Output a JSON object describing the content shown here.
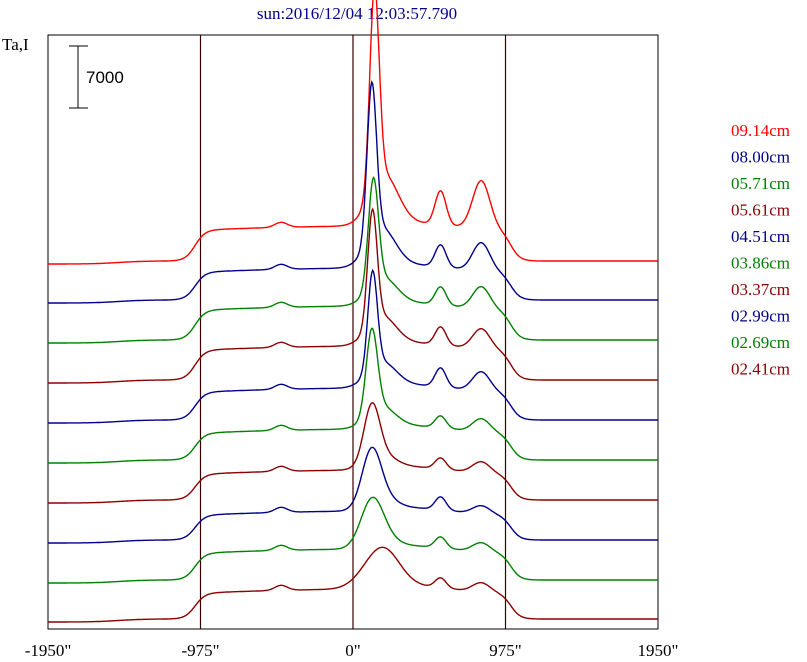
{
  "chart_data": {
    "type": "line",
    "title": "sun:2016/12/04 12:03:57.790",
    "ylabel": "Ta,I",
    "scale_bar_label": "7000",
    "xlim": [
      -1950,
      1950
    ],
    "x_ticks": [
      -1950,
      -975,
      0,
      975,
      1950
    ],
    "x_tick_labels": [
      "-1950\"",
      "-975\"",
      "0\"",
      "975\"",
      "1950\""
    ],
    "vertical_markers": [
      -975,
      0,
      975
    ],
    "colors": {
      "red": "#ff0000",
      "blue": "#00008b",
      "green": "#008000",
      "darkred": "#8b0000"
    },
    "series": [
      {
        "name": "09.14cm",
        "color": "#ff0000"
      },
      {
        "name": "08.00cm",
        "color": "#00008b"
      },
      {
        "name": "05.71cm",
        "color": "#008000"
      },
      {
        "name": "05.61cm",
        "color": "#8b0000"
      },
      {
        "name": "04.51cm",
        "color": "#00008b"
      },
      {
        "name": "03.86cm",
        "color": "#008000"
      },
      {
        "name": "03.37cm",
        "color": "#8b0000"
      },
      {
        "name": "02.99cm",
        "color": "#00008b"
      },
      {
        "name": "02.69cm",
        "color": "#008000"
      },
      {
        "name": "02.41cm",
        "color": "#8b0000"
      }
    ]
  }
}
